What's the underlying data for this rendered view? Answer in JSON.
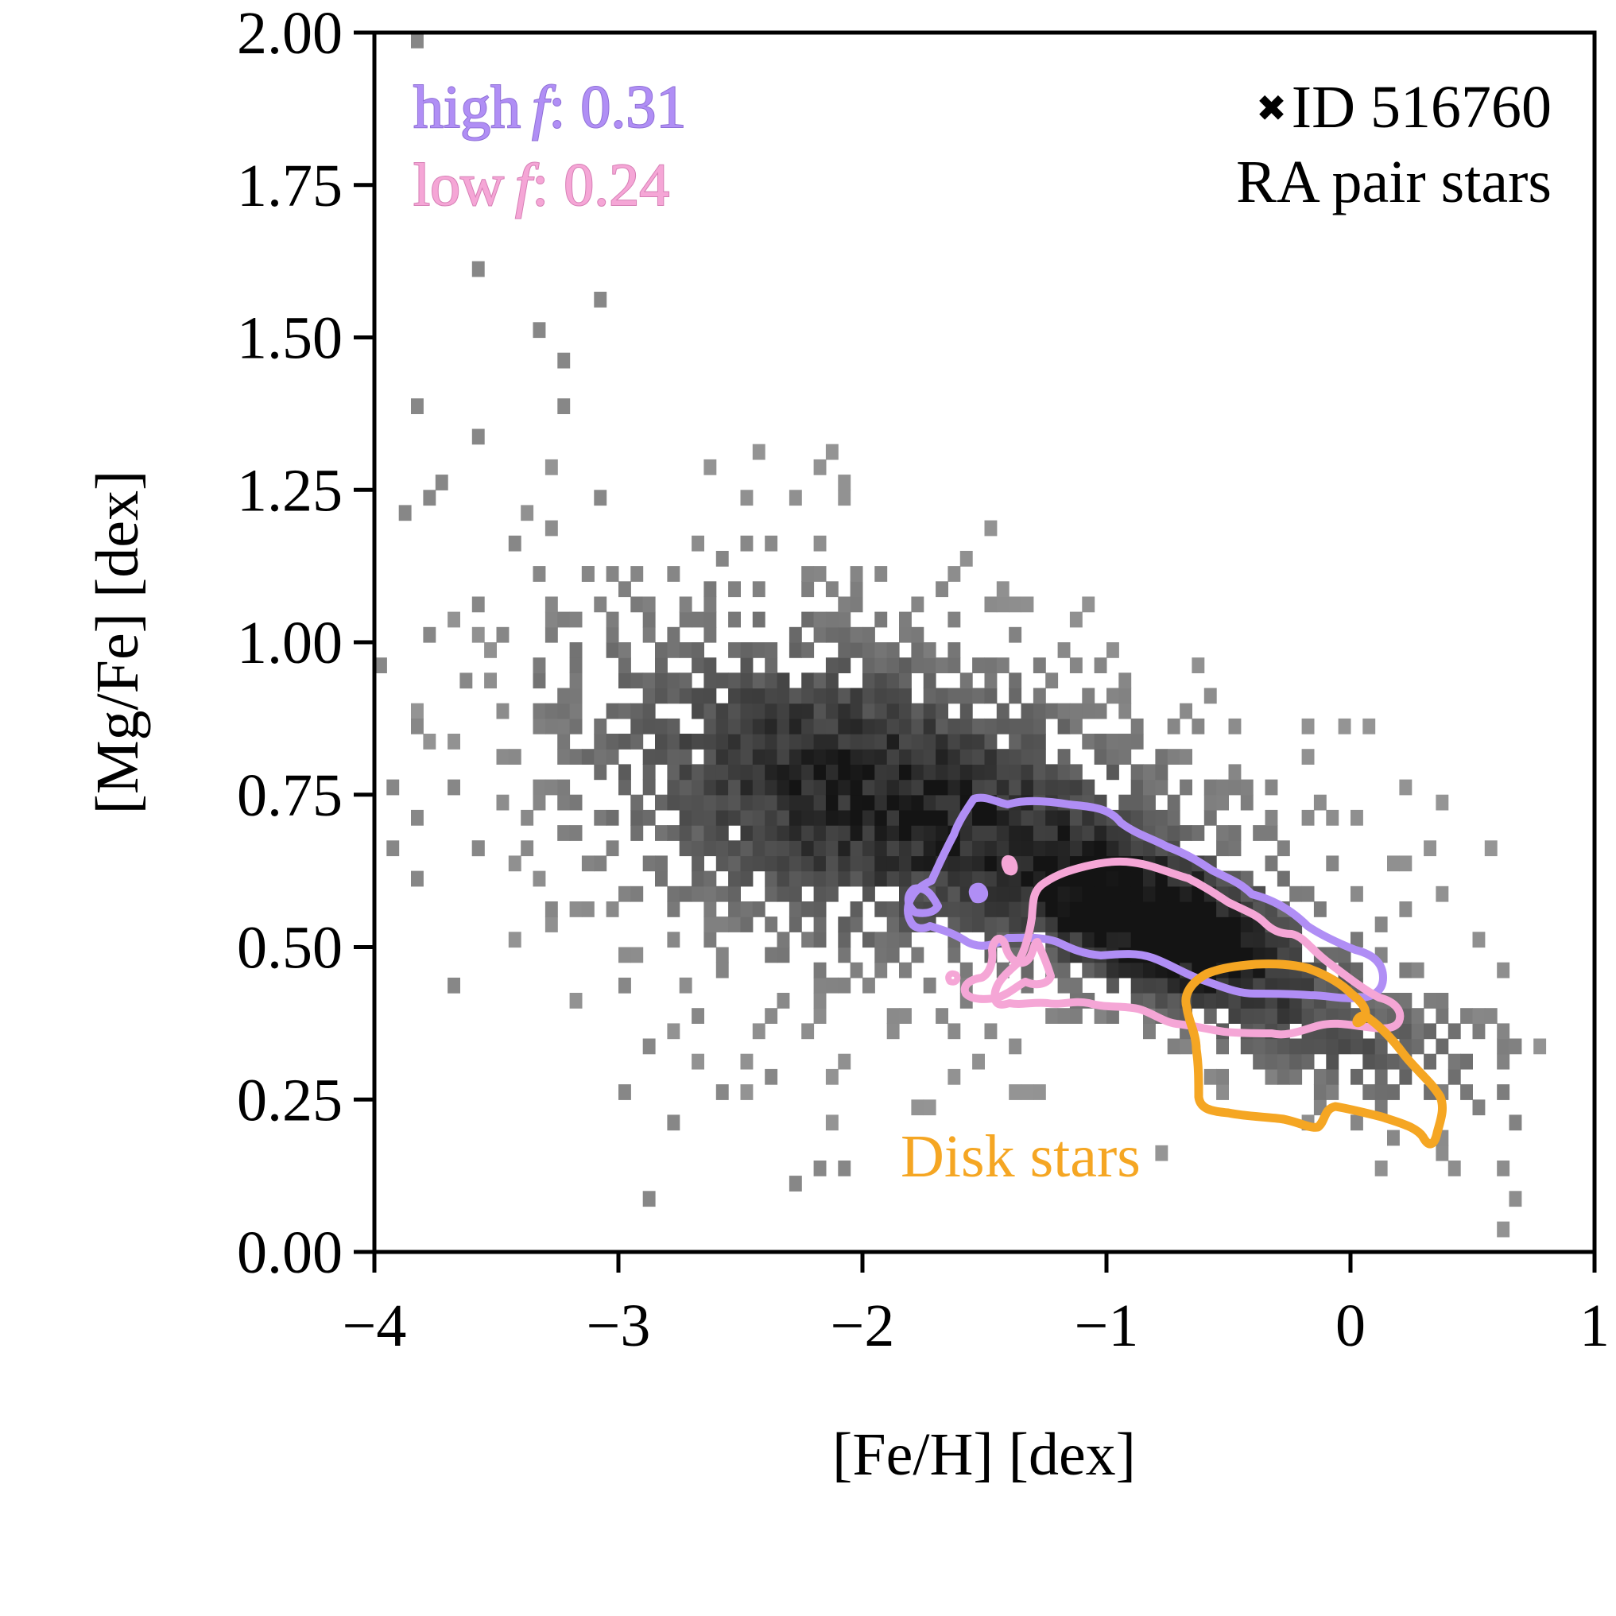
{
  "chart_data": {
    "type": "heatmap",
    "title": "",
    "xlabel": "[Fe/H] [dex]",
    "ylabel": "[Mg/Fe] [dex]",
    "xlim": [
      -4,
      1
    ],
    "ylim": [
      0,
      2
    ],
    "bin_width_x": 0.05,
    "bin_width_y": 0.025,
    "xticks": [
      -4,
      -3,
      -2,
      -1,
      0,
      1
    ],
    "xtick_labels": [
      "−4",
      "−3",
      "−2",
      "−1",
      "0",
      "1"
    ],
    "yticks": [
      0,
      0.25,
      0.5,
      0.75,
      1.0,
      1.25,
      1.5,
      1.75,
      2.0
    ],
    "ytick_labels": [
      "0.00",
      "0.25",
      "0.50",
      "0.75",
      "1.00",
      "1.25",
      "1.50",
      "1.75",
      "2.00"
    ],
    "colormap": "greys",
    "density_core": {
      "feh": -0.75,
      "mgfe": 0.52
    },
    "sparse_points": [
      [
        -3.83,
        1.98
      ],
      [
        -3.58,
        1.61
      ],
      [
        -3.33,
        1.51
      ],
      [
        -3.23,
        1.46
      ],
      [
        -3.08,
        1.55
      ],
      [
        -3.83,
        1.39
      ],
      [
        -3.23,
        1.39
      ],
      [
        -3.58,
        1.33
      ],
      [
        -3.73,
        1.27
      ],
      [
        -3.78,
        1.24
      ],
      [
        -3.88,
        1.21
      ],
      [
        -3.08,
        1.24
      ],
      [
        -3.43,
        1.17
      ],
      [
        -3.33,
        1.12
      ],
      [
        -3.13,
        1.12
      ],
      [
        -3.58,
        1.07
      ],
      [
        -3.78,
        1.02
      ],
      [
        -3.98,
        0.97
      ],
      [
        -3.63,
        0.94
      ],
      [
        -3.48,
        1.0
      ],
      [
        -3.83,
        0.87
      ],
      [
        -3.93,
        0.77
      ],
      [
        -3.83,
        0.72
      ],
      [
        -3.93,
        0.67
      ],
      [
        -3.83,
        0.62
      ],
      [
        -3.68,
        0.77
      ],
      [
        -3.58,
        0.67
      ],
      [
        -3.28,
        0.57
      ],
      [
        -3.68,
        0.43
      ],
      [
        -2.88,
        0.09
      ],
      [
        -2.28,
        0.11
      ],
      [
        -2.18,
        0.15
      ],
      [
        -2.08,
        0.15
      ],
      [
        -2.98,
        0.25
      ],
      [
        -2.78,
        0.2
      ],
      [
        -2.58,
        0.27
      ],
      [
        -2.38,
        0.3
      ],
      [
        -2.68,
        0.38
      ],
      [
        -2.98,
        0.44
      ],
      [
        -2.88,
        0.35
      ]
    ],
    "contours": [
      {
        "name": "high f",
        "color": "#b08ef5"
      },
      {
        "name": "low f",
        "color": "#f5a6d6"
      },
      {
        "name": "Disk stars",
        "color": "#f5a623"
      }
    ],
    "annotations": {
      "high_label": "high",
      "high_value": ": 0.31",
      "low_label": "low",
      "low_value": ": 0.24",
      "f_symbol": "f",
      "marker_symbol": "✖",
      "id_text": "ID 516760",
      "pair_text": "RA pair stars",
      "disk_text": "Disk stars"
    }
  }
}
